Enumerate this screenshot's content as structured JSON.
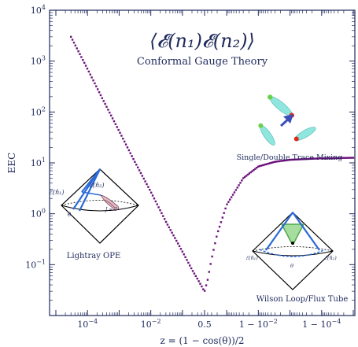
{
  "chart_data": {
    "type": "scatter",
    "title": "⟨𝓔(n₁)𝓔(n₂)⟩",
    "subtitle": "Conformal Gauge Theory",
    "xlabel": "z = (1 − cos(θ))/2",
    "ylabel": "EEC",
    "yscale": "log",
    "ylim": [
      0.01,
      10000
    ],
    "y_tick_labels": [
      {
        "value": 0.1,
        "base": "10",
        "exp": "−1"
      },
      {
        "value": 1,
        "base": "10",
        "exp": "0"
      },
      {
        "value": 10,
        "base": "10",
        "exp": "1"
      },
      {
        "value": 100,
        "base": "10",
        "exp": "2"
      },
      {
        "value": 1000,
        "base": "10",
        "exp": "3"
      },
      {
        "value": 10000,
        "base": "10",
        "exp": "4"
      }
    ],
    "x_tick_labels": [
      {
        "value": 0.0001,
        "base": "10",
        "exp": "−4"
      },
      {
        "value": 0.01,
        "base": "10",
        "exp": "−2"
      },
      {
        "value": 0.5,
        "text": "0.5"
      },
      {
        "value": 0.99,
        "base": "1 − 10",
        "exp": "−2"
      },
      {
        "value": 0.9999,
        "base": "1 − 10",
        "exp": "−4"
      }
    ],
    "marker_color": "#6a0f7a",
    "series": [
      {
        "x": [
          3e-05,
          0.0001,
          0.0003,
          0.001,
          0.003,
          0.01,
          0.03,
          0.1,
          0.2,
          0.3,
          0.4,
          0.45,
          0.5,
          0.6,
          0.7,
          0.8,
          0.9,
          0.97,
          0.99,
          0.997,
          0.999,
          0.9999,
          0.99999
        ],
        "y": [
          3000,
          700,
          180,
          42,
          11,
          2.7,
          0.7,
          0.18,
          0.08,
          0.052,
          0.038,
          0.033,
          0.03,
          0.05,
          0.13,
          0.4,
          1.5,
          5,
          8.5,
          10.5,
          11.5,
          12.3,
          12.6
        ]
      }
    ]
  },
  "annotations": {
    "lightray": "Lightray OPE",
    "mixing": "Single/Double Trace Mixing",
    "wilson": "Wilson Loop/Flux Tube",
    "e1": "ℰ(n̂₁)",
    "e2": "ℰ(n̂₂)",
    "e1_small": "ℰ(n̂₁)",
    "e2_small": "ℰ(n̂₂)",
    "theta": "θ",
    "jlabel": "J = 3"
  }
}
